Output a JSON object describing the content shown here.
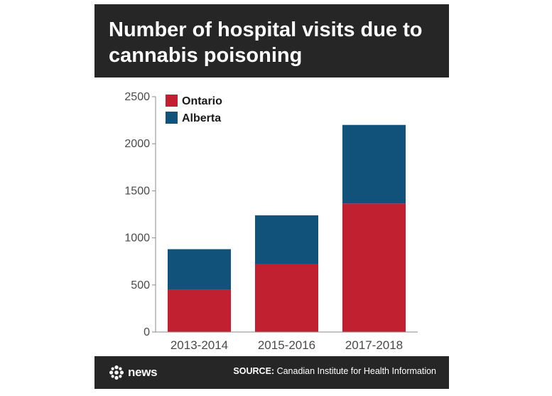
{
  "title": "Number of hospital visits due to cannabis poisoning",
  "footer": {
    "logo_text": "news",
    "source_label": "SOURCE:",
    "source_text": "Canadian Institute for Health Information"
  },
  "colors": {
    "ontario": "#c0202f",
    "alberta": "#11527a",
    "header_bg": "#262626"
  },
  "icons": {
    "logo": "cbc-gem-icon"
  },
  "chart_data": {
    "type": "bar",
    "stacked": true,
    "title": "Number of hospital visits due to cannabis poisoning",
    "categories": [
      "2013-2014",
      "2015-2016",
      "2017-2018"
    ],
    "series": [
      {
        "name": "Ontario",
        "values": [
          450,
          725,
          1365
        ],
        "color": "#c0202f"
      },
      {
        "name": "Alberta",
        "values": [
          430,
          515,
          835
        ],
        "color": "#11527a"
      }
    ],
    "yticks": [
      0,
      500,
      1000,
      1500,
      2000,
      2500
    ],
    "ylim": [
      0,
      2500
    ],
    "grid": false,
    "legend_position": "top-left"
  }
}
